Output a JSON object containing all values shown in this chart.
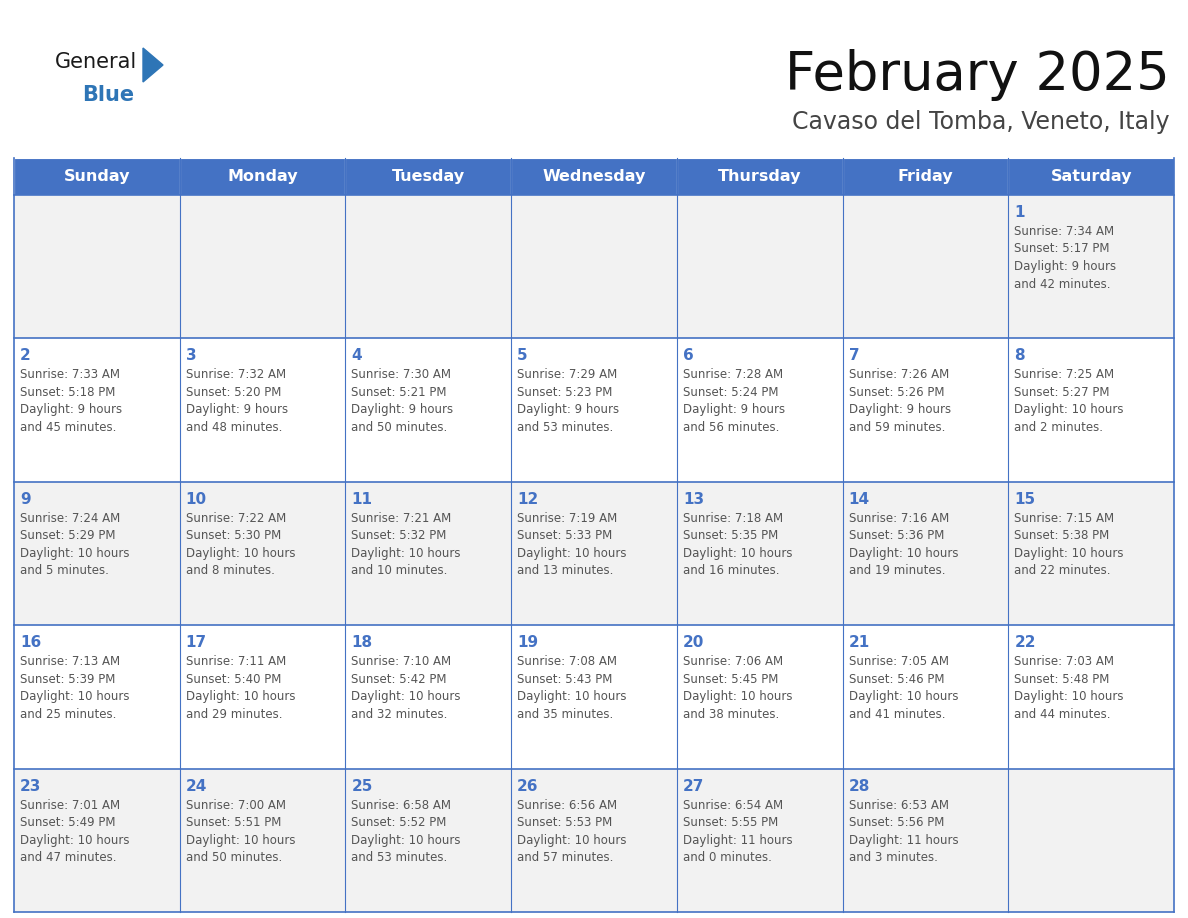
{
  "title": "February 2025",
  "subtitle": "Cavaso del Tomba, Veneto, Italy",
  "header_color": "#4472C4",
  "header_text_color": "#FFFFFF",
  "day_names": [
    "Sunday",
    "Monday",
    "Tuesday",
    "Wednesday",
    "Thursday",
    "Friday",
    "Saturday"
  ],
  "background_color": "#FFFFFF",
  "cell_bg_week1": "#F2F2F2",
  "cell_bg_week2": "#FFFFFF",
  "cell_bg_week3": "#F2F2F2",
  "cell_bg_week4": "#FFFFFF",
  "cell_bg_week5": "#F2F2F2",
  "cell_border_color": "#4472C4",
  "day_number_color": "#4472C4",
  "text_color": "#555555",
  "logo_general_color": "#1a1a1a",
  "logo_blue_color": "#2E75B6",
  "logo_triangle_color": "#2E75B6",
  "weeks": [
    [
      {
        "day": null,
        "sunrise": null,
        "sunset": null,
        "daylight": null
      },
      {
        "day": null,
        "sunrise": null,
        "sunset": null,
        "daylight": null
      },
      {
        "day": null,
        "sunrise": null,
        "sunset": null,
        "daylight": null
      },
      {
        "day": null,
        "sunrise": null,
        "sunset": null,
        "daylight": null
      },
      {
        "day": null,
        "sunrise": null,
        "sunset": null,
        "daylight": null
      },
      {
        "day": null,
        "sunrise": null,
        "sunset": null,
        "daylight": null
      },
      {
        "day": 1,
        "sunrise": "7:34 AM",
        "sunset": "5:17 PM",
        "daylight": "9 hours\nand 42 minutes."
      }
    ],
    [
      {
        "day": 2,
        "sunrise": "7:33 AM",
        "sunset": "5:18 PM",
        "daylight": "9 hours\nand 45 minutes."
      },
      {
        "day": 3,
        "sunrise": "7:32 AM",
        "sunset": "5:20 PM",
        "daylight": "9 hours\nand 48 minutes."
      },
      {
        "day": 4,
        "sunrise": "7:30 AM",
        "sunset": "5:21 PM",
        "daylight": "9 hours\nand 50 minutes."
      },
      {
        "day": 5,
        "sunrise": "7:29 AM",
        "sunset": "5:23 PM",
        "daylight": "9 hours\nand 53 minutes."
      },
      {
        "day": 6,
        "sunrise": "7:28 AM",
        "sunset": "5:24 PM",
        "daylight": "9 hours\nand 56 minutes."
      },
      {
        "day": 7,
        "sunrise": "7:26 AM",
        "sunset": "5:26 PM",
        "daylight": "9 hours\nand 59 minutes."
      },
      {
        "day": 8,
        "sunrise": "7:25 AM",
        "sunset": "5:27 PM",
        "daylight": "10 hours\nand 2 minutes."
      }
    ],
    [
      {
        "day": 9,
        "sunrise": "7:24 AM",
        "sunset": "5:29 PM",
        "daylight": "10 hours\nand 5 minutes."
      },
      {
        "day": 10,
        "sunrise": "7:22 AM",
        "sunset": "5:30 PM",
        "daylight": "10 hours\nand 8 minutes."
      },
      {
        "day": 11,
        "sunrise": "7:21 AM",
        "sunset": "5:32 PM",
        "daylight": "10 hours\nand 10 minutes."
      },
      {
        "day": 12,
        "sunrise": "7:19 AM",
        "sunset": "5:33 PM",
        "daylight": "10 hours\nand 13 minutes."
      },
      {
        "day": 13,
        "sunrise": "7:18 AM",
        "sunset": "5:35 PM",
        "daylight": "10 hours\nand 16 minutes."
      },
      {
        "day": 14,
        "sunrise": "7:16 AM",
        "sunset": "5:36 PM",
        "daylight": "10 hours\nand 19 minutes."
      },
      {
        "day": 15,
        "sunrise": "7:15 AM",
        "sunset": "5:38 PM",
        "daylight": "10 hours\nand 22 minutes."
      }
    ],
    [
      {
        "day": 16,
        "sunrise": "7:13 AM",
        "sunset": "5:39 PM",
        "daylight": "10 hours\nand 25 minutes."
      },
      {
        "day": 17,
        "sunrise": "7:11 AM",
        "sunset": "5:40 PM",
        "daylight": "10 hours\nand 29 minutes."
      },
      {
        "day": 18,
        "sunrise": "7:10 AM",
        "sunset": "5:42 PM",
        "daylight": "10 hours\nand 32 minutes."
      },
      {
        "day": 19,
        "sunrise": "7:08 AM",
        "sunset": "5:43 PM",
        "daylight": "10 hours\nand 35 minutes."
      },
      {
        "day": 20,
        "sunrise": "7:06 AM",
        "sunset": "5:45 PM",
        "daylight": "10 hours\nand 38 minutes."
      },
      {
        "day": 21,
        "sunrise": "7:05 AM",
        "sunset": "5:46 PM",
        "daylight": "10 hours\nand 41 minutes."
      },
      {
        "day": 22,
        "sunrise": "7:03 AM",
        "sunset": "5:48 PM",
        "daylight": "10 hours\nand 44 minutes."
      }
    ],
    [
      {
        "day": 23,
        "sunrise": "7:01 AM",
        "sunset": "5:49 PM",
        "daylight": "10 hours\nand 47 minutes."
      },
      {
        "day": 24,
        "sunrise": "7:00 AM",
        "sunset": "5:51 PM",
        "daylight": "10 hours\nand 50 minutes."
      },
      {
        "day": 25,
        "sunrise": "6:58 AM",
        "sunset": "5:52 PM",
        "daylight": "10 hours\nand 53 minutes."
      },
      {
        "day": 26,
        "sunrise": "6:56 AM",
        "sunset": "5:53 PM",
        "daylight": "10 hours\nand 57 minutes."
      },
      {
        "day": 27,
        "sunrise": "6:54 AM",
        "sunset": "5:55 PM",
        "daylight": "11 hours\nand 0 minutes."
      },
      {
        "day": 28,
        "sunrise": "6:53 AM",
        "sunset": "5:56 PM",
        "daylight": "11 hours\nand 3 minutes."
      },
      {
        "day": null,
        "sunrise": null,
        "sunset": null,
        "daylight": null
      }
    ]
  ],
  "week_bgs": [
    "#F2F2F2",
    "#FFFFFF",
    "#F2F2F2",
    "#FFFFFF",
    "#F2F2F2"
  ]
}
